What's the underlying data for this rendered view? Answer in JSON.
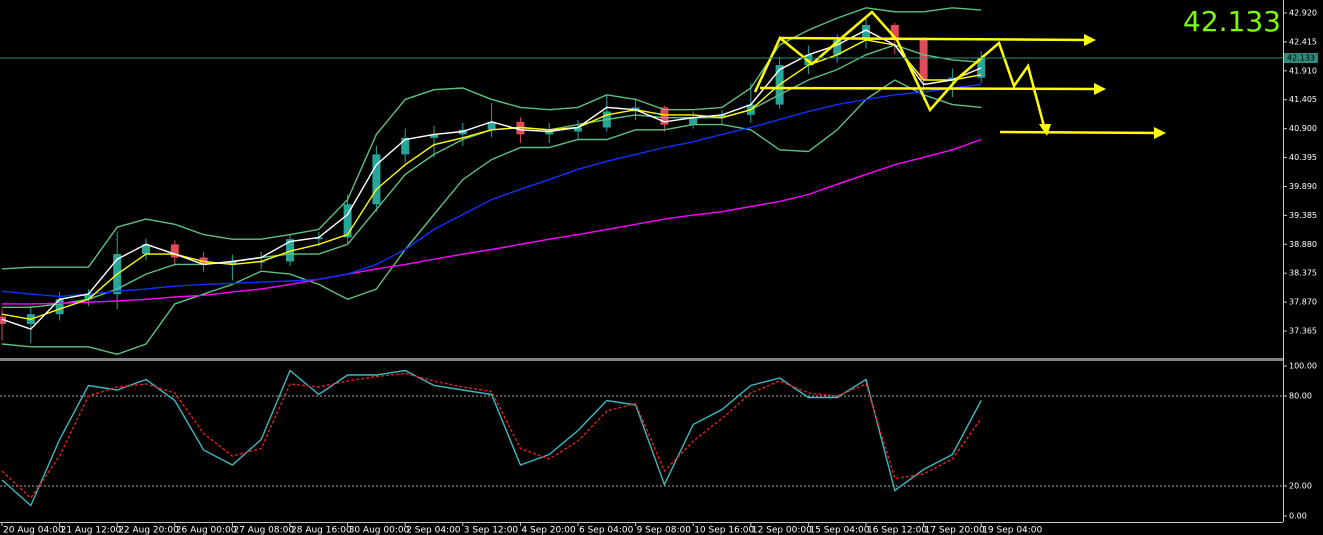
{
  "chart_data": [
    {
      "type": "candlestick",
      "current_price": 42.133,
      "ylim": [
        36.895,
        43.146
      ],
      "yticks": [
        {
          "value": 42.92,
          "label": "42.920"
        },
        {
          "value": 42.415,
          "label": "42.415"
        },
        {
          "value": 41.91,
          "label": "41.910"
        },
        {
          "value": 41.405,
          "label": "41.405"
        },
        {
          "value": 40.9,
          "label": "40.900"
        },
        {
          "value": 40.395,
          "label": "40.395"
        },
        {
          "value": 39.89,
          "label": "39.890"
        },
        {
          "value": 39.385,
          "label": "39.385"
        },
        {
          "value": 38.88,
          "label": "38.880"
        },
        {
          "value": 38.375,
          "label": "38.375"
        },
        {
          "value": 37.87,
          "label": "37.870"
        },
        {
          "value": 37.365,
          "label": "37.365"
        }
      ],
      "up_color": "#26a69a",
      "down_color": "#e2495b",
      "open": [
        37.62,
        37.49,
        37.66,
        37.92,
        38.01,
        38.71,
        38.88,
        38.65,
        38.53,
        38.58,
        38.58,
        38.97,
        39.0,
        39.58,
        40.45,
        40.74,
        40.8,
        40.88,
        41.02,
        40.8,
        40.85,
        40.92,
        41.2,
        41.27,
        40.97,
        41.09,
        41.14,
        41.32,
        42.01,
        42.19,
        42.45,
        42.71,
        42.45,
        41.75,
        41.79
      ],
      "high": [
        37.75,
        37.8,
        38.05,
        38.1,
        39.1,
        38.98,
        38.95,
        38.75,
        38.7,
        38.75,
        39.05,
        39.1,
        39.75,
        40.6,
        40.9,
        40.95,
        41.0,
        41.35,
        41.1,
        41.0,
        41.05,
        41.5,
        41.4,
        41.3,
        41.2,
        41.22,
        41.7,
        42.15,
        42.35,
        42.55,
        42.85,
        42.75,
        42.5,
        41.95,
        42.25
      ],
      "low": [
        37.2,
        37.15,
        37.55,
        37.8,
        37.75,
        38.6,
        38.5,
        38.4,
        38.25,
        38.45,
        38.5,
        38.85,
        38.9,
        39.45,
        40.3,
        40.4,
        40.6,
        40.75,
        40.65,
        40.65,
        40.7,
        40.85,
        41.05,
        40.85,
        40.9,
        40.98,
        41.0,
        41.25,
        41.85,
        42.05,
        42.3,
        42.2,
        41.4,
        41.45,
        41.7
      ],
      "close": [
        37.49,
        37.66,
        37.92,
        38.01,
        38.71,
        38.88,
        38.65,
        38.53,
        38.58,
        38.58,
        38.97,
        39.0,
        39.58,
        40.45,
        40.74,
        40.8,
        40.88,
        41.02,
        40.8,
        40.85,
        40.92,
        41.2,
        41.27,
        40.97,
        41.09,
        41.14,
        41.32,
        42.01,
        42.19,
        42.45,
        42.71,
        42.45,
        41.75,
        41.79,
        42.13
      ],
      "series": [
        {
          "color": "#5fbf7f",
          "values": [
            38.45,
            38.48,
            38.48,
            38.48,
            39.18,
            39.32,
            39.23,
            39.05,
            38.97,
            38.97,
            39.05,
            39.14,
            39.66,
            40.8,
            41.41,
            41.58,
            41.61,
            41.41,
            41.27,
            41.23,
            41.27,
            41.49,
            41.41,
            41.23,
            41.23,
            41.27,
            41.61,
            42.36,
            42.62,
            42.83,
            43.01,
            42.94,
            42.94,
            43.01,
            42.97
          ]
        },
        {
          "color": "#5fbf7f",
          "values": [
            37.78,
            37.78,
            37.84,
            37.92,
            38.1,
            38.36,
            38.53,
            38.53,
            38.58,
            38.65,
            38.71,
            38.71,
            38.88,
            39.49,
            40.1,
            40.45,
            40.71,
            40.88,
            40.92,
            40.88,
            40.97,
            41.06,
            41.14,
            41.09,
            41.09,
            41.09,
            41.23,
            41.49,
            41.75,
            41.93,
            42.19,
            42.36,
            42.19,
            42.1,
            42.06
          ]
        },
        {
          "color": "#5fbf7f",
          "values": [
            37.14,
            37.09,
            37.09,
            37.09,
            36.96,
            37.14,
            37.84,
            38.01,
            38.18,
            38.41,
            38.36,
            38.18,
            37.92,
            38.1,
            38.79,
            39.4,
            40.01,
            40.36,
            40.57,
            40.57,
            40.71,
            40.71,
            40.88,
            40.88,
            40.97,
            40.97,
            40.88,
            40.53,
            40.5,
            40.88,
            41.41,
            41.75,
            41.49,
            41.32,
            41.27
          ]
        },
        {
          "color": "#ff00ff",
          "values": [
            37.84,
            37.84,
            37.85,
            37.87,
            37.89,
            37.92,
            37.96,
            37.99,
            38.05,
            38.1,
            38.18,
            38.27,
            38.36,
            38.45,
            38.53,
            38.62,
            38.71,
            38.79,
            38.88,
            38.97,
            39.05,
            39.14,
            39.23,
            39.32,
            39.39,
            39.45,
            39.54,
            39.63,
            39.75,
            39.93,
            40.1,
            40.27,
            40.4,
            40.53,
            40.71
          ]
        },
        {
          "color": "#1030ff",
          "values": [
            38.06,
            38.01,
            37.97,
            38.01,
            38.06,
            38.1,
            38.15,
            38.18,
            38.2,
            38.22,
            38.24,
            38.27,
            38.36,
            38.53,
            38.79,
            39.14,
            39.4,
            39.66,
            39.84,
            40.01,
            40.19,
            40.33,
            40.45,
            40.57,
            40.67,
            40.8,
            40.92,
            41.06,
            41.2,
            41.32,
            41.41,
            41.49,
            41.54,
            41.61,
            41.67
          ]
        },
        {
          "color": "#ffff00",
          "values": [
            37.66,
            37.57,
            37.75,
            37.92,
            38.36,
            38.71,
            38.71,
            38.58,
            38.53,
            38.58,
            38.76,
            38.88,
            39.05,
            39.84,
            40.27,
            40.62,
            40.74,
            40.88,
            40.92,
            40.88,
            40.92,
            41.14,
            41.23,
            41.14,
            41.14,
            41.09,
            41.23,
            41.67,
            42.01,
            42.19,
            42.45,
            42.36,
            41.75,
            41.75,
            41.84
          ]
        },
        {
          "color": "#ffffff",
          "values": [
            37.57,
            37.4,
            37.92,
            38.01,
            38.62,
            38.88,
            38.71,
            38.53,
            38.58,
            38.65,
            38.93,
            39.0,
            39.4,
            40.27,
            40.71,
            40.8,
            40.85,
            41.02,
            40.88,
            40.85,
            40.92,
            41.27,
            41.23,
            41.02,
            41.09,
            41.14,
            41.32,
            41.93,
            42.19,
            42.36,
            42.62,
            42.36,
            41.67,
            41.75,
            41.96
          ]
        }
      ]
    },
    {
      "type": "line",
      "ylim": [
        -4,
        102.7
      ],
      "yticks": [
        {
          "value": 100,
          "label": "100.00"
        },
        {
          "value": 80,
          "label": "80.00"
        },
        {
          "value": 20,
          "label": "20.00"
        },
        {
          "value": 0,
          "label": "0.00"
        }
      ],
      "levels": [
        80,
        20
      ],
      "categories": [
        "20 Aug 04:00",
        null,
        "21 Aug 12:00",
        null,
        "22 Aug 20:00",
        null,
        "26 Aug 00:00",
        null,
        "27 Aug 08:00",
        null,
        "28 Aug 16:00",
        null,
        "30 Aug 00:00",
        null,
        "2 Sep 04:00",
        null,
        "3 Sep 12:00",
        null,
        "4 Sep 20:00",
        null,
        "6 Sep 04:00",
        null,
        "9 Sep 08:00",
        null,
        "10 Sep 16:00",
        null,
        "12 Sep 00:00",
        null,
        "15 Sep 04:00",
        null,
        "16 Sep 12:00",
        null,
        "17 Sep 20:00",
        null,
        "19 Sep 04:00"
      ],
      "series": [
        {
          "color": "#3fb8c0",
          "values": [
            24,
            7,
            51,
            87,
            84,
            91,
            77,
            44,
            34,
            51,
            97,
            81,
            94,
            94,
            97,
            87,
            84,
            81,
            34,
            41,
            57,
            77,
            74,
            21,
            61,
            71,
            87,
            92,
            79,
            79,
            91,
            17,
            31,
            41,
            77
          ]
        },
        {
          "color": "#e02020",
          "dashed": true,
          "values": [
            30,
            12,
            40,
            80,
            86,
            88,
            82,
            55,
            40,
            45,
            88,
            86,
            90,
            93,
            95,
            90,
            86,
            83,
            45,
            38,
            50,
            70,
            75,
            30,
            50,
            65,
            82,
            90,
            82,
            80,
            88,
            25,
            28,
            38,
            65
          ]
        }
      ]
    }
  ]
}
